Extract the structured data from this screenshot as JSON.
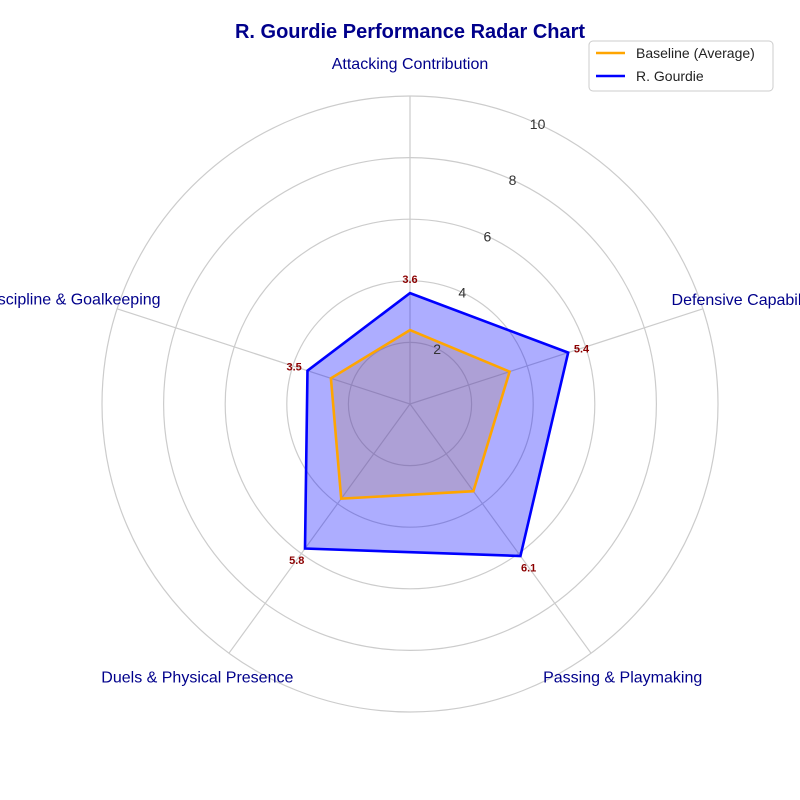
{
  "chart_data": {
    "type": "radar",
    "title": "R. Gourdie Performance Radar Chart",
    "categories": [
      "Attacking Contribution",
      "Defensive Capability",
      "Passing & Playmaking",
      "Duels & Physical Presence",
      "Discipline & Goalkeeping"
    ],
    "rlim": [
      0,
      10
    ],
    "r_ticks": [
      2,
      4,
      6,
      8,
      10
    ],
    "grid": true,
    "legend_position": "top-right",
    "series": [
      {
        "name": "Baseline (Average)",
        "values": [
          2.4,
          3.4,
          3.5,
          3.8,
          2.7
        ],
        "color": "#ffa500",
        "fill": false,
        "data_labels": false
      },
      {
        "name": "R. Gourdie",
        "values": [
          3.6,
          5.4,
          6.1,
          5.8,
          3.5
        ],
        "color": "#0000ff",
        "fill": true,
        "data_labels": true
      }
    ],
    "data_label_color": "#8b0000",
    "grid_color": "#cccccc",
    "title_color": "#00008b"
  }
}
